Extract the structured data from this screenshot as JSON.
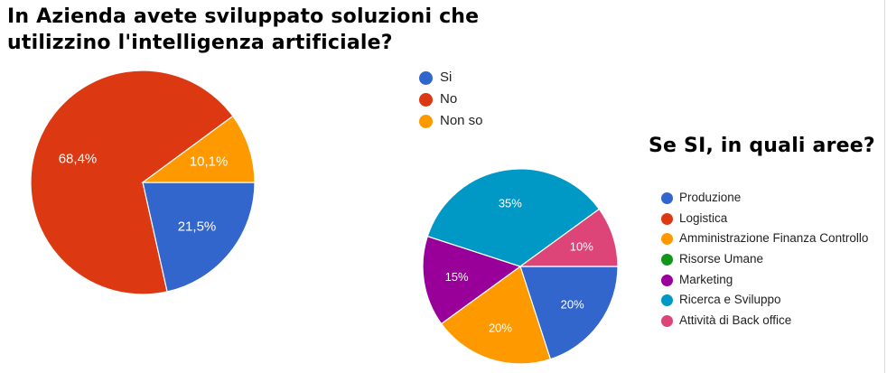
{
  "chart_data": [
    {
      "type": "pie",
      "title": "In Azienda avete sviluppato soluzioni che utilizzino l'intelligenza artificiale?",
      "categories": [
        "Si",
        "No",
        "Non so"
      ],
      "values": [
        21.5,
        68.4,
        10.1
      ],
      "labels": [
        "21,5%",
        "68,4%",
        "10,1%"
      ],
      "colors": [
        "#3366cc",
        "#dc3912",
        "#ff9900"
      ],
      "legend": "right"
    },
    {
      "type": "pie",
      "title": "Se SI, in quali aree?",
      "categories": [
        "Produzione",
        "Logistica",
        "Amministrazione Finanza Controllo",
        "Risorse Umane",
        "Marketing",
        "Ricerca e Sviluppo",
        "Attività di Back office"
      ],
      "values": [
        20,
        0,
        20,
        0,
        15,
        35,
        10
      ],
      "labels": [
        "20%",
        "",
        "20%",
        "",
        "15%",
        "35%",
        "10%"
      ],
      "colors": [
        "#3366cc",
        "#dc3912",
        "#ff9900",
        "#109618",
        "#990099",
        "#0099c6",
        "#dd4477"
      ],
      "legend": "right"
    }
  ]
}
